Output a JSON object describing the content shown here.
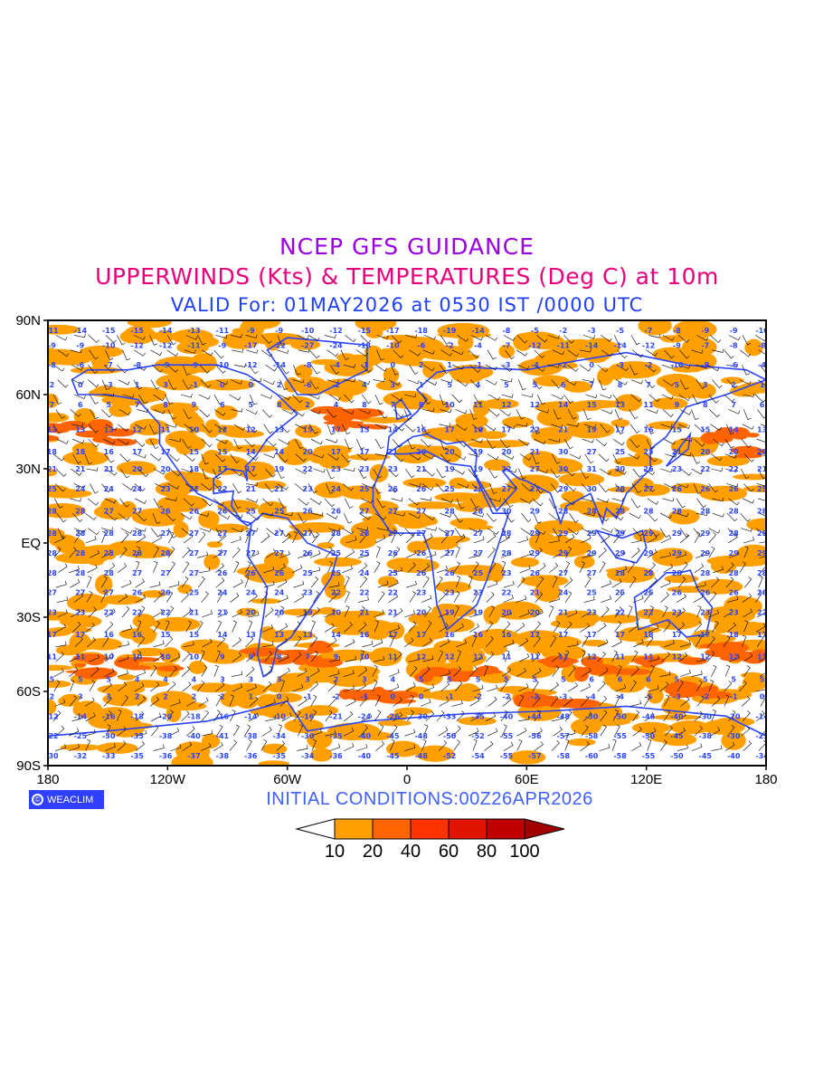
{
  "title": {
    "line1": "NCEP GFS GUIDANCE",
    "line2": "UPPERWINDS (Kts) & TEMPERATURES (Deg C) at 10m",
    "line3": "VALID For: 01MAY2026 at 0530 IST /0000 UTC"
  },
  "footer": {
    "logo_text": "WEACLIM",
    "logo_symbol": "©",
    "initial_conditions": "INITIAL  CONDITIONS:00Z26APR2026"
  },
  "chart_data": {
    "type": "heatmap",
    "title": "UPPERWINDS (Kts) & TEMPERATURES (Deg C) at 10m",
    "x_ticks": [
      "180",
      "120W",
      "60W",
      "0",
      "60E",
      "120E",
      "180"
    ],
    "x_tick_values": [
      -180,
      -120,
      -60,
      0,
      60,
      120,
      180
    ],
    "y_ticks": [
      "90N",
      "60N",
      "30N",
      "EQ",
      "30S",
      "60S",
      "90S"
    ],
    "y_tick_values": [
      90,
      60,
      30,
      0,
      -30,
      -60,
      -90
    ],
    "xlim": [
      -180,
      180
    ],
    "ylim": [
      -90,
      90
    ],
    "colorbar": {
      "label_unit": "Kts",
      "levels": [
        "10",
        "20",
        "40",
        "60",
        "80",
        "100"
      ],
      "colors": [
        "#ffffff",
        "#ffa000",
        "#ff6400",
        "#ff3200",
        "#e01400",
        "#c00000",
        "#a00000"
      ]
    },
    "temperature_rows": [
      {
        "lat": 86,
        "values": [
          -11,
          -14,
          -15,
          -15,
          -14,
          -13,
          -11,
          -9,
          -9,
          -10,
          -12,
          -15,
          -17,
          -18,
          -19,
          -14,
          -8,
          -5,
          -2,
          -3,
          -5,
          -7,
          -8,
          -9,
          -9,
          -10
        ]
      },
      {
        "lat": 80,
        "values": [
          -9,
          -9,
          -10,
          -12,
          -12,
          -11,
          -9,
          -17,
          -22,
          -27,
          -24,
          -18,
          -10,
          -6,
          -2,
          -4,
          -7,
          -12,
          -11,
          -14,
          -14,
          -12,
          -9,
          -7,
          -8,
          -8
        ]
      },
      {
        "lat": 72,
        "values": [
          -8,
          -6,
          -7,
          -8,
          -9,
          -9,
          -10,
          -12,
          -14,
          -8,
          -4,
          -1,
          0,
          2,
          1,
          -1,
          -3,
          -4,
          -2,
          0,
          -3,
          -2,
          -10,
          -8,
          -6,
          -4
        ]
      },
      {
        "lat": 64,
        "values": [
          2,
          0,
          -3,
          1,
          3,
          -1,
          0,
          0,
          2,
          -6,
          -2,
          4,
          3,
          1,
          5,
          4,
          5,
          5,
          6,
          7,
          8,
          7,
          5,
          3,
          2,
          1
        ]
      },
      {
        "lat": 56,
        "values": [
          7,
          6,
          5,
          7,
          8,
          9,
          6,
          5,
          8,
          2,
          4,
          8,
          7,
          8,
          10,
          11,
          12,
          12,
          14,
          15,
          13,
          11,
          9,
          8,
          7,
          6
        ]
      },
      {
        "lat": 46,
        "values": [
          13,
          13,
          13,
          12,
          11,
          10,
          12,
          12,
          13,
          15,
          17,
          15,
          14,
          16,
          17,
          18,
          17,
          22,
          21,
          19,
          17,
          16,
          15,
          15,
          14,
          13
        ]
      },
      {
        "lat": 37,
        "values": [
          18,
          18,
          16,
          17,
          17,
          15,
          15,
          14,
          14,
          20,
          17,
          17,
          21,
          20,
          20,
          19,
          20,
          21,
          30,
          27,
          25,
          23,
          21,
          20,
          20,
          20
        ]
      },
      {
        "lat": 30,
        "values": [
          21,
          21,
          21,
          20,
          20,
          18,
          17,
          17,
          19,
          22,
          23,
          23,
          23,
          21,
          19,
          19,
          22,
          27,
          30,
          31,
          30,
          26,
          23,
          22,
          22,
          21
        ]
      },
      {
        "lat": 22,
        "values": [
          25,
          24,
          24,
          24,
          23,
          22,
          22,
          21,
          21,
          23,
          24,
          25,
          26,
          26,
          25,
          26,
          27,
          27,
          29,
          30,
          28,
          27,
          26,
          26,
          26,
          25
        ]
      },
      {
        "lat": 13,
        "values": [
          28,
          28,
          27,
          27,
          26,
          26,
          26,
          25,
          25,
          26,
          26,
          27,
          27,
          27,
          28,
          28,
          30,
          29,
          28,
          28,
          28,
          28,
          28,
          28,
          28,
          28
        ]
      },
      {
        "lat": 4,
        "values": [
          28,
          28,
          28,
          28,
          27,
          27,
          27,
          27,
          27,
          27,
          28,
          28,
          27,
          27,
          27,
          27,
          28,
          29,
          29,
          29,
          29,
          29,
          29,
          29,
          28,
          28
        ]
      },
      {
        "lat": -4,
        "values": [
          28,
          28,
          28,
          28,
          28,
          27,
          27,
          27,
          27,
          26,
          25,
          25,
          26,
          26,
          27,
          27,
          28,
          29,
          29,
          29,
          29,
          29,
          29,
          29,
          29,
          29
        ]
      },
      {
        "lat": -12,
        "values": [
          28,
          28,
          28,
          27,
          27,
          27,
          26,
          26,
          26,
          25,
          25,
          24,
          25,
          26,
          26,
          25,
          23,
          26,
          27,
          27,
          28,
          28,
          28,
          28,
          28,
          28
        ]
      },
      {
        "lat": -20,
        "values": [
          27,
          27,
          27,
          26,
          26,
          25,
          24,
          24,
          24,
          23,
          22,
          22,
          22,
          23,
          23,
          23,
          22,
          21,
          24,
          25,
          25,
          25,
          26,
          26,
          26,
          26
        ]
      },
      {
        "lat": -28,
        "values": [
          23,
          23,
          22,
          22,
          22,
          21,
          21,
          20,
          20,
          19,
          20,
          21,
          21,
          20,
          19,
          19,
          20,
          20,
          21,
          23,
          22,
          22,
          23,
          23,
          23,
          22
        ]
      },
      {
        "lat": -37,
        "values": [
          17,
          17,
          16,
          16,
          15,
          15,
          14,
          13,
          13,
          13,
          14,
          16,
          17,
          17,
          16,
          16,
          16,
          17,
          17,
          17,
          17,
          18,
          17,
          17,
          18,
          17
        ]
      },
      {
        "lat": -46,
        "values": [
          11,
          11,
          10,
          10,
          10,
          10,
          9,
          9,
          8,
          7,
          9,
          10,
          11,
          12,
          12,
          12,
          11,
          11,
          11,
          12,
          11,
          11,
          12,
          12,
          12,
          11
        ]
      },
      {
        "lat": -55,
        "values": [
          5,
          5,
          5,
          4,
          4,
          4,
          3,
          3,
          3,
          3,
          2,
          3,
          4,
          5,
          5,
          5,
          5,
          5,
          5,
          6,
          6,
          6,
          5,
          5,
          5,
          5
        ]
      },
      {
        "lat": -62,
        "values": [
          2,
          3,
          3,
          2,
          2,
          2,
          2,
          1,
          0,
          -1,
          -2,
          -1,
          0,
          0,
          -1,
          -2,
          -2,
          -2,
          -3,
          -4,
          -4,
          -5,
          -3,
          -2,
          -1,
          0
        ]
      },
      {
        "lat": -70,
        "values": [
          -12,
          -14,
          -16,
          -18,
          -20,
          -18,
          -16,
          -14,
          -10,
          -16,
          -21,
          -24,
          -26,
          -30,
          -33,
          -35,
          -40,
          -44,
          -48,
          -50,
          -50,
          -46,
          -40,
          -30,
          -20,
          -14
        ]
      },
      {
        "lat": -78,
        "values": [
          -22,
          -25,
          -30,
          -35,
          -38,
          -40,
          -41,
          -38,
          -34,
          -30,
          -35,
          -40,
          -45,
          -48,
          -50,
          -52,
          -55,
          -56,
          -57,
          -58,
          -55,
          -50,
          -45,
          -38,
          -30,
          -25
        ]
      },
      {
        "lat": -86,
        "values": [
          -30,
          -32,
          -33,
          -35,
          -36,
          -37,
          -38,
          -36,
          -35,
          -34,
          -36,
          -40,
          -45,
          -48,
          -52,
          -54,
          -55,
          -57,
          -58,
          -60,
          -58,
          -55,
          -50,
          -45,
          -40,
          -34
        ]
      }
    ]
  }
}
